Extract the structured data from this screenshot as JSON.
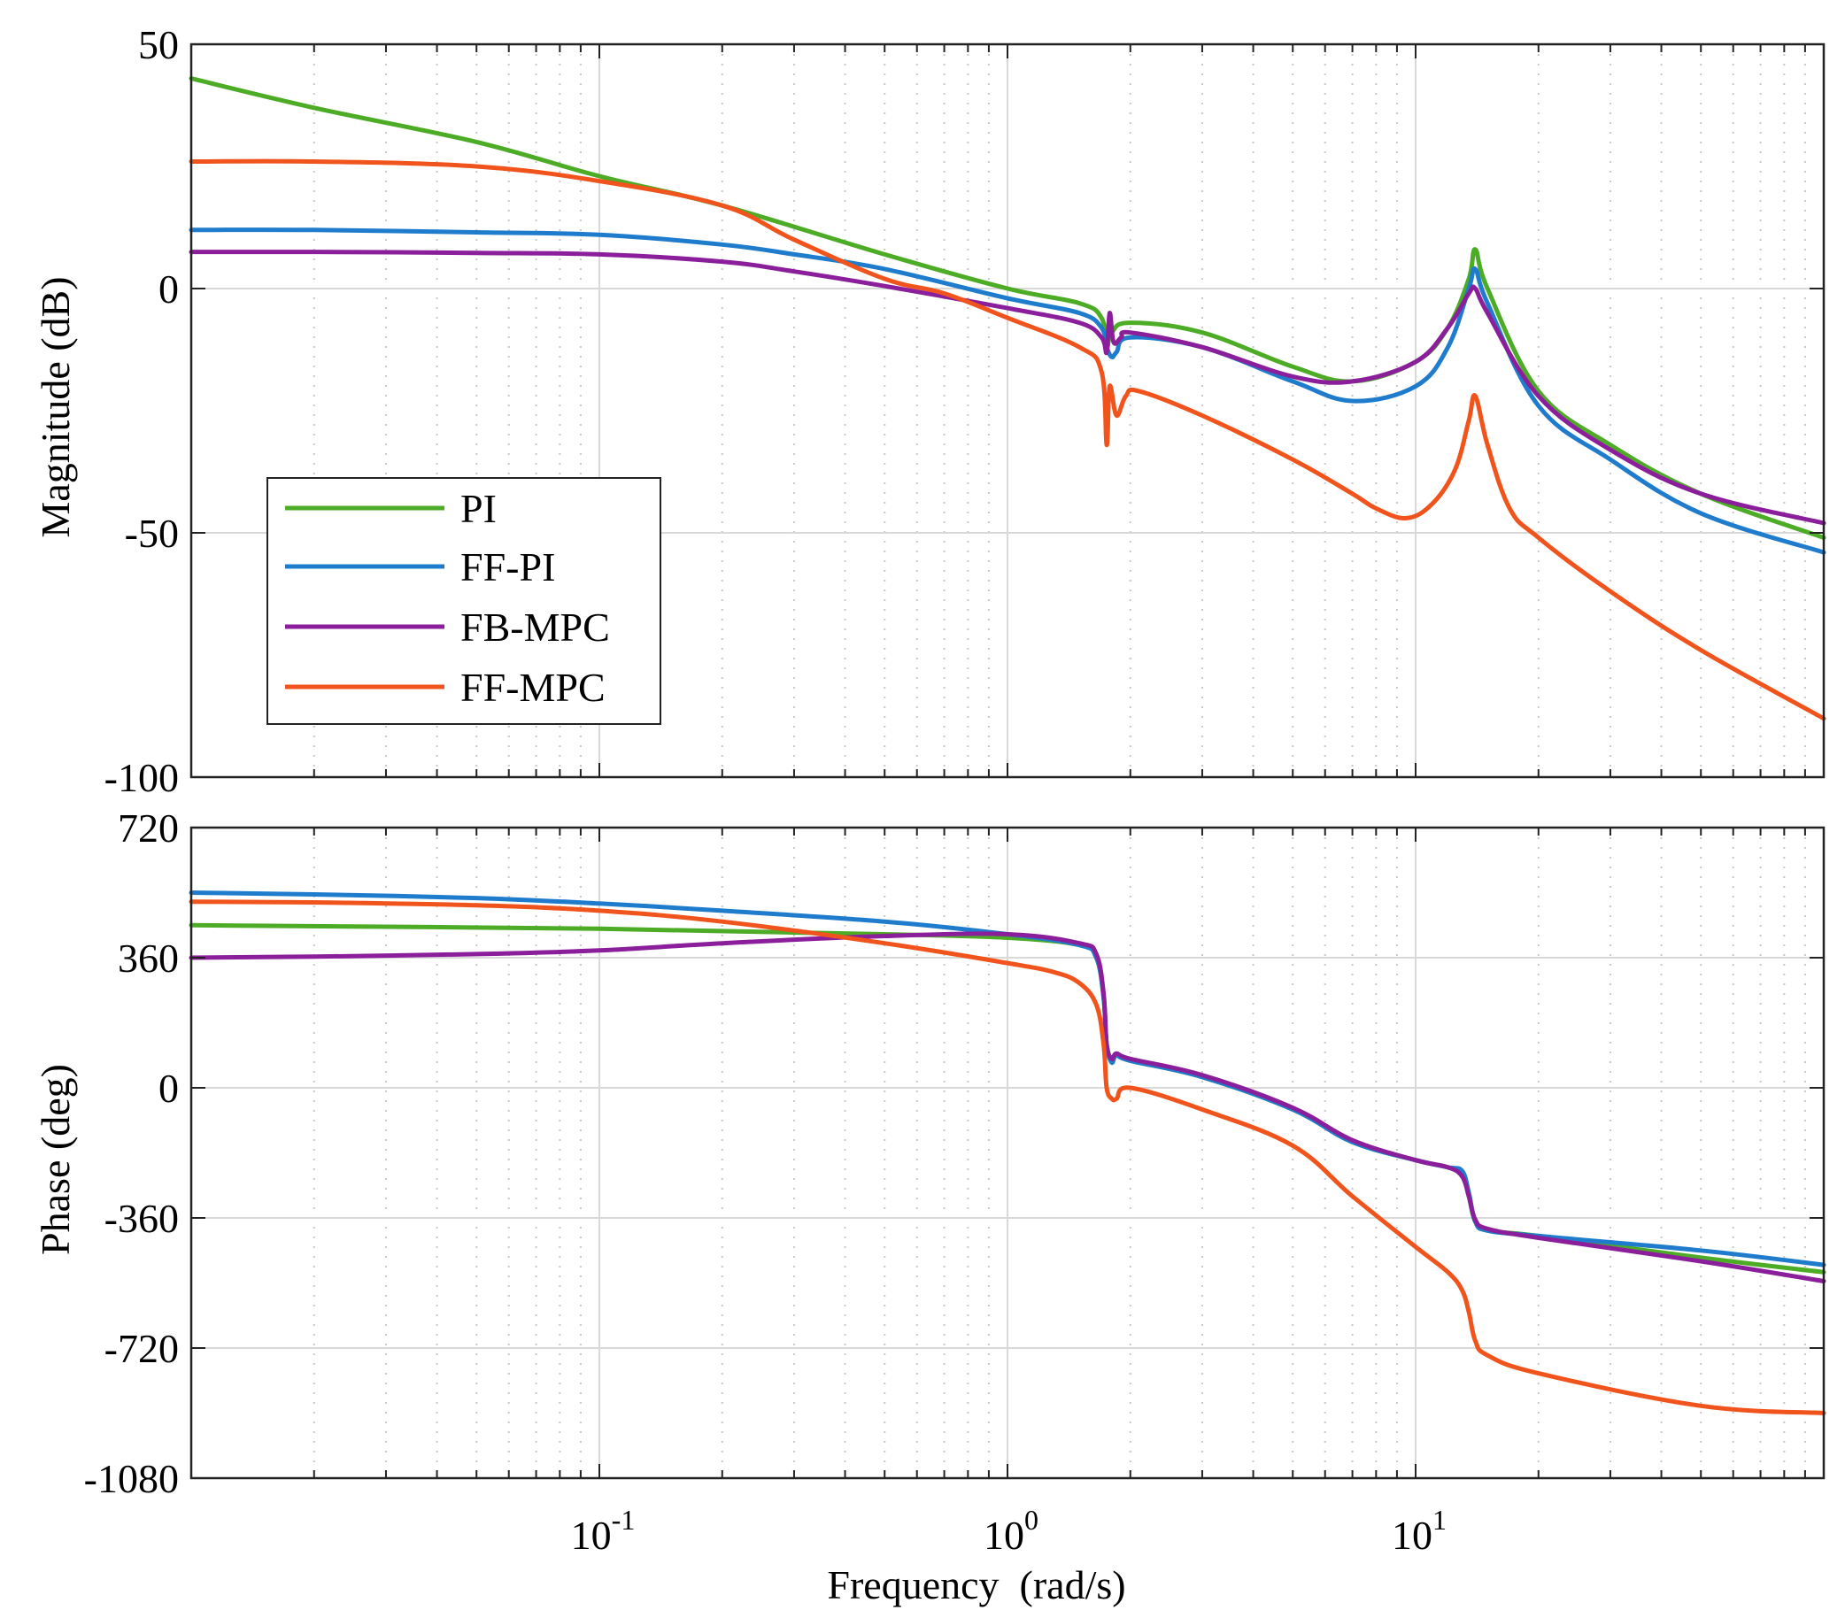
{
  "chart_data": [
    {
      "type": "line",
      "panel": "magnitude",
      "xscale": "log",
      "xlim": [
        0.01,
        100
      ],
      "ylim": [
        -100,
        50
      ],
      "yticks": [
        50,
        0,
        -50,
        -100
      ],
      "ytick_labels": [
        "50",
        "0",
        "-50",
        "-100"
      ],
      "ylabel": "Magnitude (dB)",
      "grid": true,
      "legend": {
        "placement": "lower-left",
        "entries": [
          "PI",
          "FF-PI",
          "FB-MPC",
          "FF-MPC"
        ]
      },
      "series": [
        {
          "name": "PI",
          "color": "#4dac26",
          "x": [
            0.01,
            0.02,
            0.05,
            0.1,
            0.2,
            0.5,
            1.0,
            1.5,
            1.7,
            1.75,
            1.8,
            2.0,
            3.0,
            5.0,
            7.0,
            10.0,
            12.0,
            13.5,
            14.0,
            15.0,
            20.0,
            30.0,
            50.0,
            100.0
          ],
          "y": [
            43,
            37,
            30,
            23,
            17,
            7,
            0,
            -3,
            -6,
            -12,
            -9,
            -7,
            -9,
            -16,
            -19,
            -15,
            -8,
            2,
            8,
            0,
            -21,
            -32,
            -42,
            -51
          ]
        },
        {
          "name": "FF-PI",
          "color": "#1f7ccc",
          "x": [
            0.01,
            0.02,
            0.05,
            0.1,
            0.2,
            0.3,
            0.5,
            1.0,
            1.5,
            1.7,
            1.75,
            1.8,
            1.85,
            2.0,
            3.0,
            5.0,
            7.0,
            10.0,
            12.0,
            13.5,
            14.0,
            15.0,
            20.0,
            30.0,
            50.0,
            100.0
          ],
          "y": [
            12,
            12,
            11.5,
            11,
            9,
            7,
            4,
            -2,
            -5,
            -8,
            -12,
            -14,
            -13,
            -10,
            -12,
            -19,
            -23,
            -20,
            -12,
            0,
            4,
            -3,
            -24,
            -35,
            -46,
            -54
          ]
        },
        {
          "name": "FB-MPC",
          "color": "#8b1f9b",
          "x": [
            0.01,
            0.02,
            0.05,
            0.1,
            0.2,
            0.3,
            0.5,
            1.0,
            1.5,
            1.7,
            1.75,
            1.78,
            1.82,
            1.9,
            2.0,
            3.0,
            5.0,
            7.0,
            10.0,
            12.0,
            13.5,
            14.0,
            15.0,
            20.0,
            30.0,
            50.0,
            100.0
          ],
          "y": [
            7.5,
            7.5,
            7.3,
            7,
            5.5,
            3.5,
            0.5,
            -4,
            -7,
            -10,
            -13,
            -5,
            -11,
            -10,
            -9,
            -12,
            -18,
            -19,
            -15,
            -8,
            -1,
            0,
            -5,
            -22,
            -33,
            -42,
            -48
          ]
        },
        {
          "name": "FF-MPC",
          "color": "#f0541c",
          "x": [
            0.01,
            0.02,
            0.05,
            0.1,
            0.2,
            0.3,
            0.5,
            0.7,
            1.0,
            1.5,
            1.7,
            1.75,
            1.78,
            1.85,
            1.95,
            2.1,
            3.0,
            5.0,
            7.0,
            8.0,
            9.5,
            11.0,
            12.5,
            13.5,
            14.0,
            15.0,
            17.0,
            20.0,
            30.0,
            50.0,
            100.0
          ],
          "y": [
            26,
            26,
            25,
            22,
            17,
            10,
            2,
            -1,
            -6,
            -12,
            -17,
            -32,
            -20,
            -26,
            -22,
            -21,
            -26,
            -35,
            -42,
            -45,
            -47,
            -44,
            -37,
            -27,
            -22,
            -32,
            -45,
            -51,
            -62,
            -74,
            -88
          ]
        }
      ]
    },
    {
      "type": "line",
      "panel": "phase",
      "xscale": "log",
      "xlim": [
        0.01,
        100
      ],
      "ylim": [
        -1080,
        720
      ],
      "yticks": [
        720,
        360,
        0,
        -360,
        -720,
        -1080
      ],
      "ytick_labels": [
        "720",
        "360",
        "0",
        "-360",
        "-720",
        "-1080"
      ],
      "ylabel": "Phase (deg)",
      "xlabel": "Frequency  (rad/s)",
      "xticks": [
        0.1,
        1,
        10
      ],
      "xtick_labels": [
        {
          "base": "10",
          "exp": "-1"
        },
        {
          "base": "10",
          "exp": "0"
        },
        {
          "base": "10",
          "exp": "1"
        }
      ],
      "grid": true,
      "series": [
        {
          "name": "PI",
          "color": "#4dac26",
          "x": [
            0.01,
            0.1,
            0.5,
            1.0,
            1.5,
            1.65,
            1.72,
            1.75,
            1.8,
            1.85,
            2.0,
            3.0,
            5.0,
            7.0,
            10.0,
            12.0,
            13.0,
            13.5,
            14.0,
            15.0,
            20.0,
            50.0,
            100.0
          ],
          "y": [
            450,
            440,
            425,
            415,
            395,
            360,
            250,
            120,
            80,
            90,
            75,
            30,
            -60,
            -150,
            -200,
            -220,
            -240,
            -300,
            -370,
            -395,
            -410,
            -470,
            -510
          ]
        },
        {
          "name": "FF-PI",
          "color": "#1f7ccc",
          "x": [
            0.01,
            0.02,
            0.05,
            0.1,
            0.2,
            0.5,
            1.0,
            1.5,
            1.65,
            1.72,
            1.75,
            1.8,
            1.85,
            2.0,
            3.0,
            5.0,
            7.0,
            10.0,
            12.0,
            13.0,
            13.5,
            14.0,
            15.0,
            20.0,
            50.0,
            100.0
          ],
          "y": [
            540,
            535,
            525,
            510,
            490,
            460,
            425,
            395,
            360,
            250,
            120,
            70,
            90,
            75,
            30,
            -60,
            -150,
            -200,
            -220,
            -230,
            -290,
            -370,
            -395,
            -410,
            -450,
            -490
          ]
        },
        {
          "name": "FB-MPC",
          "color": "#8b1f9b",
          "x": [
            0.01,
            0.02,
            0.05,
            0.1,
            0.2,
            0.5,
            1.0,
            1.5,
            1.65,
            1.72,
            1.75,
            1.8,
            1.85,
            2.0,
            3.0,
            5.0,
            7.0,
            10.0,
            12.0,
            13.0,
            13.5,
            14.0,
            15.0,
            20.0,
            50.0,
            100.0
          ],
          "y": [
            360,
            363,
            370,
            380,
            400,
            420,
            425,
            400,
            370,
            260,
            120,
            80,
            95,
            80,
            35,
            -55,
            -145,
            -200,
            -220,
            -245,
            -300,
            -365,
            -390,
            -415,
            -480,
            -535
          ]
        },
        {
          "name": "FF-MPC",
          "color": "#f0541c",
          "x": [
            0.01,
            0.02,
            0.05,
            0.1,
            0.2,
            0.5,
            1.0,
            1.3,
            1.5,
            1.65,
            1.72,
            1.75,
            1.8,
            1.85,
            2.0,
            3.0,
            5.0,
            7.0,
            10.0,
            12.0,
            13.0,
            13.5,
            14.0,
            15.0,
            20.0,
            50.0,
            100.0
          ],
          "y": [
            515,
            513,
            505,
            490,
            460,
            400,
            345,
            320,
            290,
            230,
            120,
            0,
            -30,
            -30,
            0,
            -60,
            -160,
            -300,
            -440,
            -510,
            -560,
            -620,
            -700,
            -740,
            -790,
            -880,
            -900
          ]
        }
      ]
    }
  ]
}
